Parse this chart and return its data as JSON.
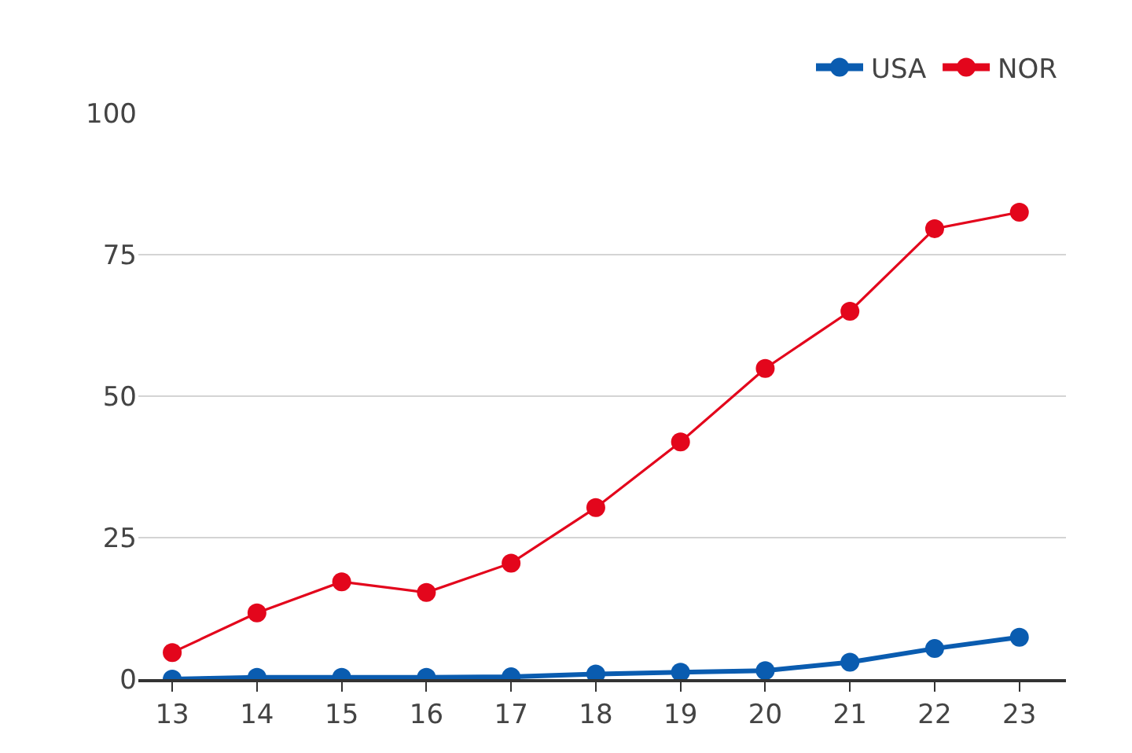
{
  "chart_data": {
    "type": "line",
    "x": [
      13,
      14,
      15,
      16,
      17,
      18,
      19,
      20,
      21,
      22,
      23
    ],
    "series": [
      {
        "name": "USA",
        "color": "#0a5cb0",
        "values": [
          0,
          0.3,
          0.3,
          0.3,
          0.4,
          0.9,
          1.2,
          1.5,
          3.0,
          5.4,
          7.4
        ]
      },
      {
        "name": "NOR",
        "color": "#e3061c",
        "values": [
          4.7,
          11.7,
          17.2,
          15.3,
          20.5,
          30.3,
          41.9,
          54.9,
          65.0,
          79.6,
          82.5
        ]
      }
    ],
    "xlim": [
      12.6,
      23.55
    ],
    "xticks": [
      13,
      14,
      15,
      16,
      17,
      18,
      19,
      20,
      21,
      22,
      23
    ],
    "ylim": [
      0,
      100
    ],
    "yticks": [
      0,
      25,
      50,
      75,
      100
    ],
    "grid": "y",
    "legend": "top right",
    "marker": "circle",
    "line_style": "solid"
  }
}
